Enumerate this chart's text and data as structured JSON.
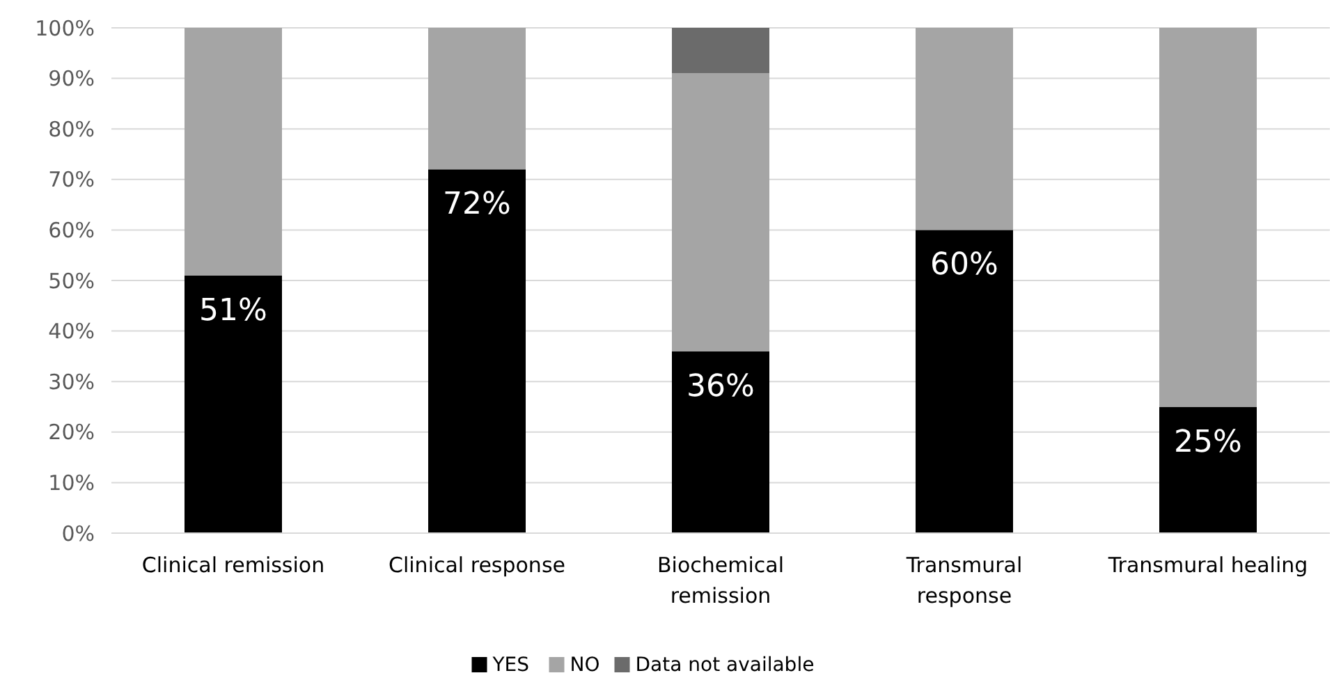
{
  "chart_data": {
    "type": "bar",
    "stacked": true,
    "categories": [
      "Clinical remission",
      "Clinical response",
      "Biochemical\nremission",
      "Transmural\nresponse",
      "Transmural healing"
    ],
    "series": [
      {
        "name": "YES",
        "color": "#000000",
        "values": [
          51,
          72,
          36,
          60,
          25
        ],
        "value_labels": [
          "51%",
          "72%",
          "36%",
          "60%",
          "25%"
        ]
      },
      {
        "name": "NO",
        "color": "#a5a5a5",
        "values": [
          49,
          28,
          55,
          40,
          75
        ]
      },
      {
        "name": "Data not available",
        "color": "#6b6b6b",
        "values": [
          null,
          null,
          9,
          null,
          null
        ]
      }
    ],
    "ylim": [
      0,
      100
    ],
    "yticks": [
      {
        "value": 0,
        "label": "0%"
      },
      {
        "value": 10,
        "label": "10%"
      },
      {
        "value": 20,
        "label": "20%"
      },
      {
        "value": 30,
        "label": "30%"
      },
      {
        "value": 40,
        "label": "40%"
      },
      {
        "value": 50,
        "label": "50%"
      },
      {
        "value": 60,
        "label": "60%"
      },
      {
        "value": 70,
        "label": "70%"
      },
      {
        "value": 80,
        "label": "80%"
      },
      {
        "value": 90,
        "label": "90%"
      },
      {
        "value": 100,
        "label": "100%"
      }
    ],
    "grid": "y",
    "legend": "bottom"
  }
}
